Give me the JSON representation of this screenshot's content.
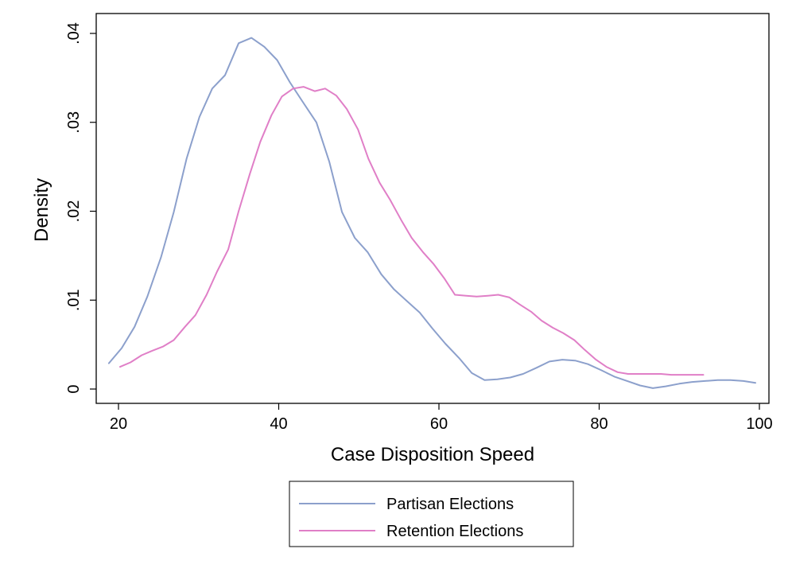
{
  "chart_data": {
    "type": "line",
    "title": "",
    "xlabel": "Case Disposition Speed",
    "ylabel": "Density",
    "xlim": [
      18.5,
      100
    ],
    "ylim": [
      0,
      0.04
    ],
    "x_ticks": [
      20,
      40,
      60,
      80,
      100
    ],
    "x_tick_labels": [
      "20",
      "40",
      "60",
      "80",
      "100"
    ],
    "y_ticks": [
      0,
      0.01,
      0.02,
      0.03,
      0.04
    ],
    "y_tick_labels": [
      "0",
      ".01",
      ".02",
      ".03",
      ".04"
    ],
    "grid": false,
    "legend": "bottom",
    "series": [
      {
        "name": "Partisan Elections",
        "color": "#8ca0cc",
        "x": [
          18.8,
          20.4,
          22,
          23.6,
          25.3,
          26.9,
          28.5,
          30.1,
          31.7,
          33.3,
          35,
          36.6,
          38.2,
          39.8,
          41.4,
          43,
          44.7,
          46.3,
          47.9,
          49.5,
          51.1,
          52.8,
          54.4,
          56,
          57.6,
          59.2,
          60.8,
          62.5,
          64.1,
          65.7,
          67.3,
          68.9,
          70.5,
          72.2,
          73.8,
          75.4,
          77,
          78.6,
          80.3,
          81.9,
          83.5,
          85.1,
          86.7,
          88.3,
          90,
          91.6,
          93.2,
          94.8,
          96.4,
          98,
          99.5
        ],
        "y": [
          0.0029,
          0.0046,
          0.007,
          0.0104,
          0.0148,
          0.0199,
          0.0259,
          0.0306,
          0.0338,
          0.0353,
          0.0389,
          0.0395,
          0.0385,
          0.037,
          0.0345,
          0.0323,
          0.03,
          0.0256,
          0.0199,
          0.017,
          0.0154,
          0.0129,
          0.0112,
          0.0099,
          0.0086,
          0.0068,
          0.0051,
          0.0035,
          0.0018,
          0.001,
          0.0011,
          0.0013,
          0.0017,
          0.0024,
          0.0031,
          0.0033,
          0.0032,
          0.0028,
          0.0021,
          0.0014,
          0.0009,
          0.0004,
          0.0001,
          0.0003,
          0.0006,
          0.0008,
          0.0009,
          0.001,
          0.001,
          0.0009,
          0.0007
        ]
      },
      {
        "name": "Retention Elections",
        "color": "#e07fc7",
        "x": [
          20.2,
          21.5,
          22.9,
          24.2,
          25.6,
          26.9,
          28.3,
          29.6,
          31,
          32.3,
          33.7,
          35,
          36.4,
          37.7,
          39.1,
          40.4,
          41.8,
          43.1,
          44.5,
          45.8,
          47.2,
          48.5,
          49.9,
          51.2,
          52.6,
          53.9,
          55.3,
          56.6,
          58,
          59.3,
          60.7,
          62,
          63.4,
          64.7,
          66.1,
          67.4,
          68.8,
          70.1,
          71.5,
          72.8,
          74.2,
          75.5,
          76.9,
          78.2,
          79.6,
          80.9,
          82.3,
          83.6,
          85,
          86.3,
          87.7,
          89,
          90.4,
          91.7,
          93
        ],
        "y": [
          0.0025,
          0.003,
          0.0038,
          0.0043,
          0.0048,
          0.0055,
          0.007,
          0.0083,
          0.0106,
          0.0132,
          0.0157,
          0.02,
          0.0242,
          0.0278,
          0.0308,
          0.0329,
          0.0338,
          0.034,
          0.0335,
          0.0338,
          0.033,
          0.0315,
          0.0292,
          0.0259,
          0.0232,
          0.0213,
          0.019,
          0.017,
          0.0154,
          0.0141,
          0.0124,
          0.0106,
          0.0105,
          0.0104,
          0.0105,
          0.0106,
          0.0103,
          0.0095,
          0.0087,
          0.0077,
          0.0069,
          0.0063,
          0.0055,
          0.0044,
          0.0033,
          0.0025,
          0.0019,
          0.0017,
          0.0017,
          0.0017,
          0.0017,
          0.0016,
          0.0016,
          0.0016,
          0.0016
        ]
      }
    ]
  }
}
